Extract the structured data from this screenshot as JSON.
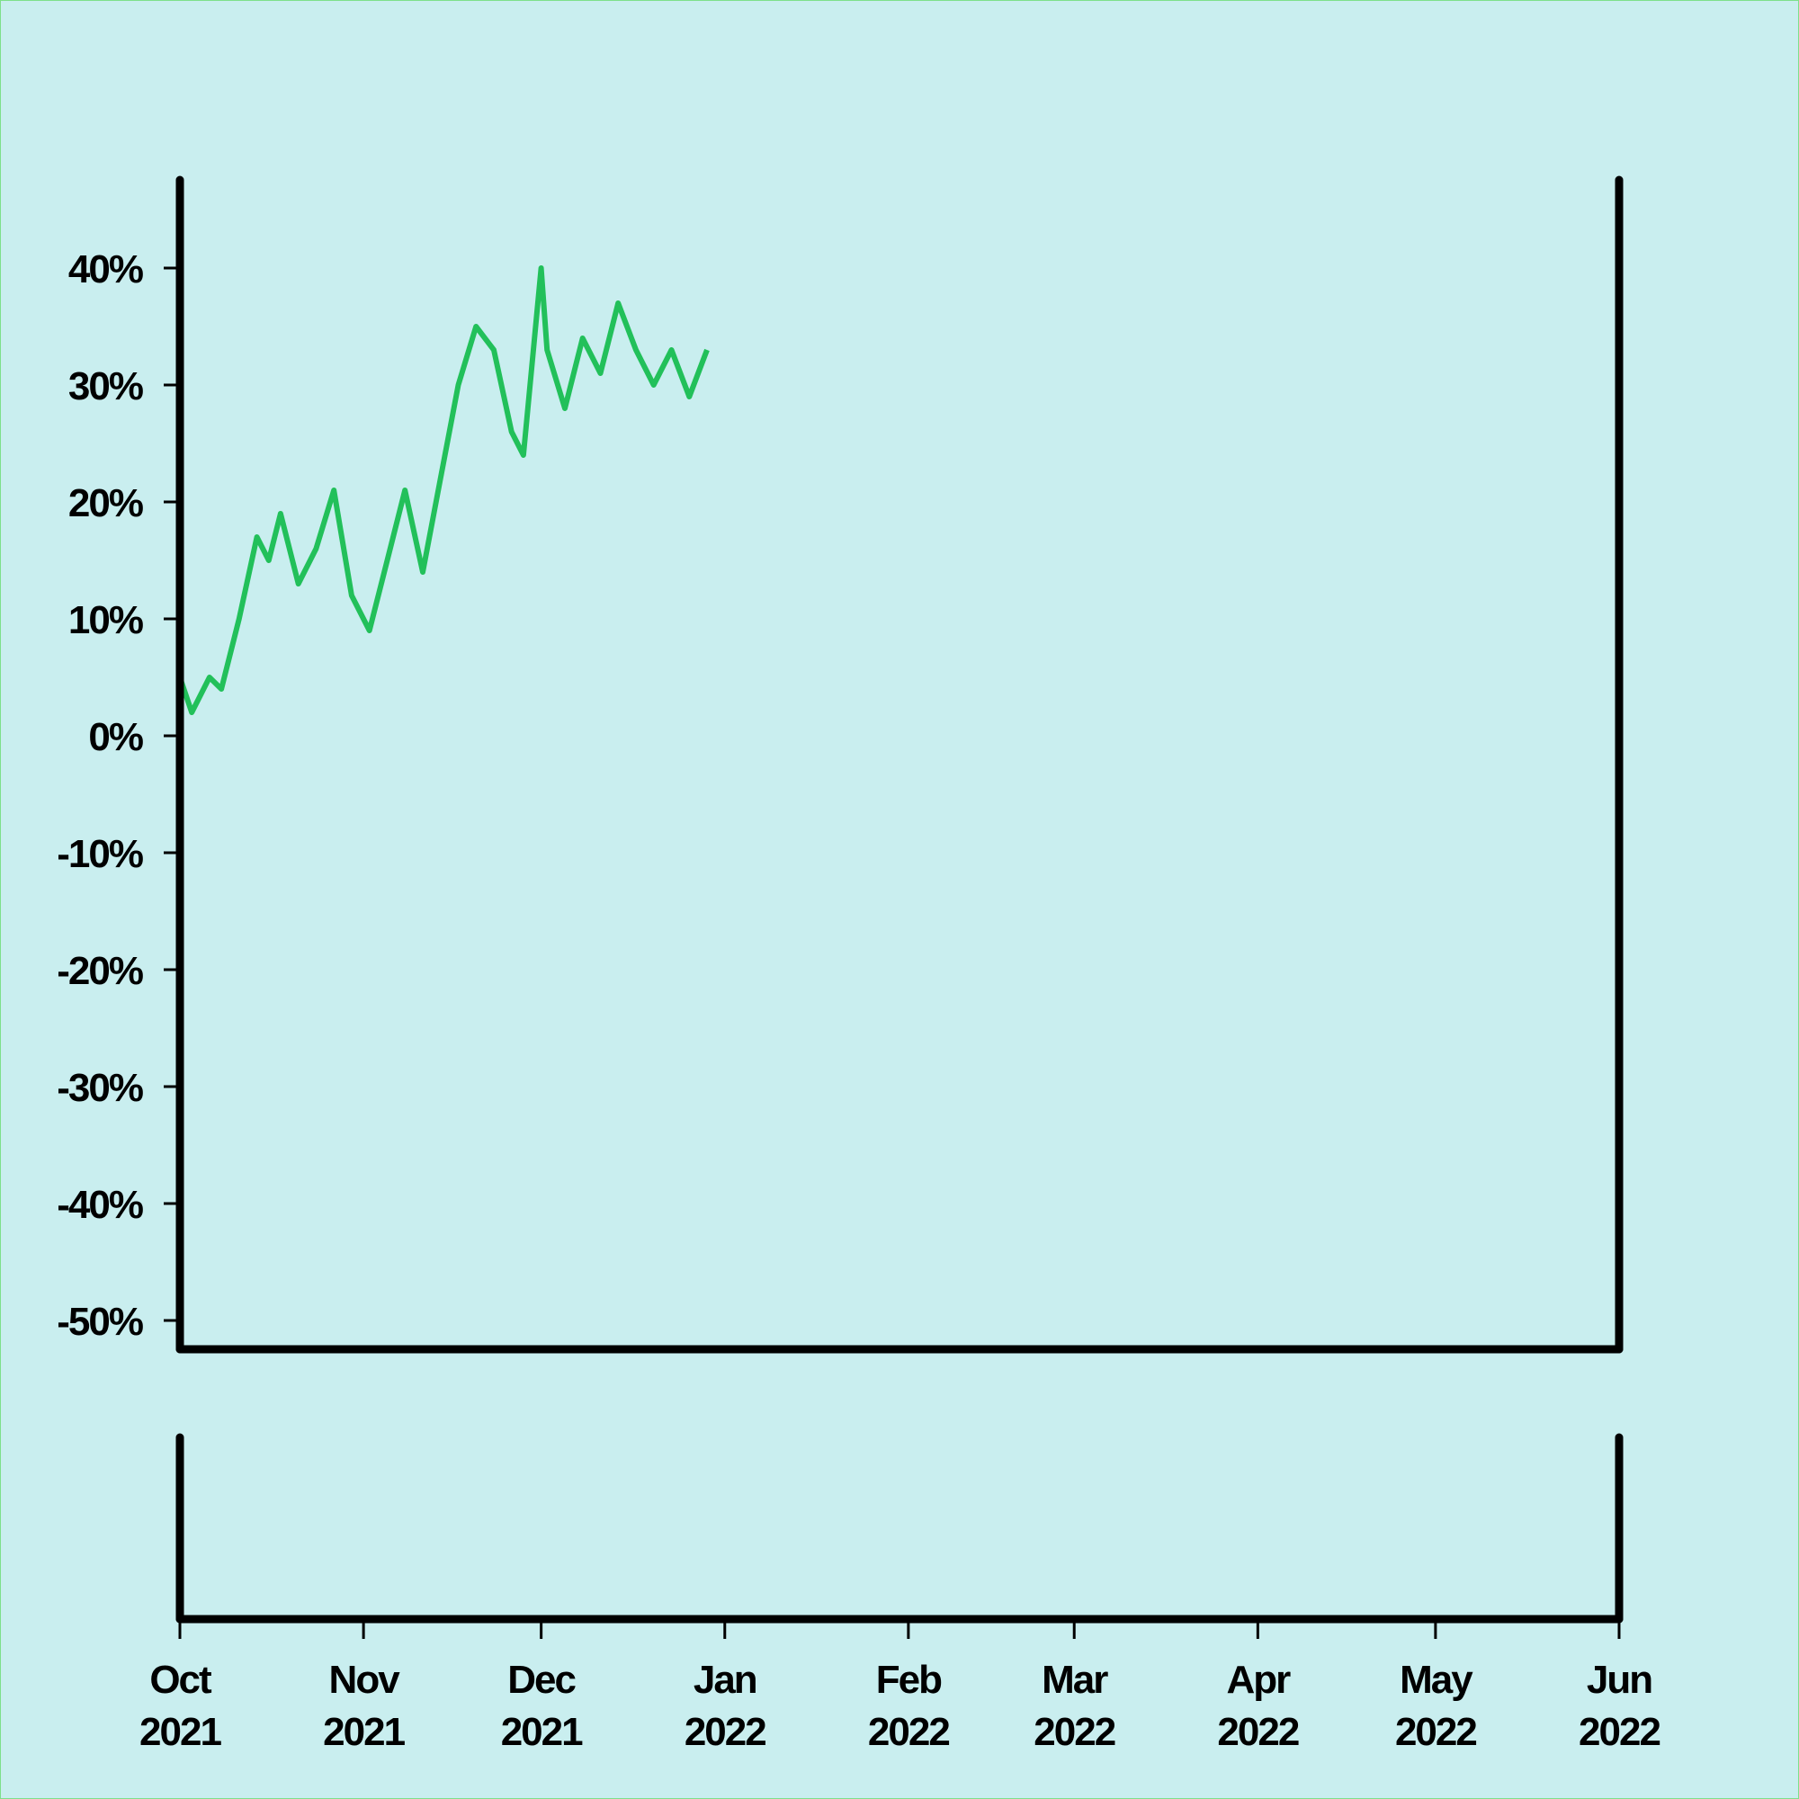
{
  "chart_data": [
    {
      "type": "line",
      "title": "",
      "xlabel": "",
      "ylabel": "",
      "grid": false,
      "ylim": [
        -50,
        50
      ],
      "yticks": [
        "40%",
        "30%",
        "20%",
        "10%",
        "0%",
        "-10%",
        "-20%",
        "-30%",
        "-40%",
        "-50%"
      ],
      "ytick_values": [
        40,
        30,
        20,
        10,
        0,
        -10,
        -20,
        -30,
        -40,
        -50
      ],
      "x_domain": [
        "2021-10-01",
        "2022-06-01"
      ],
      "xticks": [
        {
          "date": "2021-10-01",
          "month": "Oct",
          "year": "2021"
        },
        {
          "date": "2021-11-01",
          "month": "Nov",
          "year": "2021"
        },
        {
          "date": "2021-12-01",
          "month": "Dec",
          "year": "2021"
        },
        {
          "date": "2022-01-01",
          "month": "Jan",
          "year": "2022"
        },
        {
          "date": "2022-02-01",
          "month": "Feb",
          "year": "2022"
        },
        {
          "date": "2022-03-01",
          "month": "Mar",
          "year": "2022"
        },
        {
          "date": "2022-04-01",
          "month": "Apr",
          "year": "2022"
        },
        {
          "date": "2022-05-01",
          "month": "May",
          "year": "2022"
        },
        {
          "date": "2022-06-01",
          "month": "Jun",
          "year": "2022"
        }
      ],
      "series": [
        {
          "style": "solid",
          "color": "#22c05a",
          "points": [
            [
              "2021-10-01",
              5
            ],
            [
              "2021-10-03",
              2
            ],
            [
              "2021-10-06",
              5
            ],
            [
              "2021-10-08",
              4
            ],
            [
              "2021-10-11",
              10
            ],
            [
              "2021-10-14",
              17
            ],
            [
              "2021-10-16",
              15
            ],
            [
              "2021-10-18",
              19
            ],
            [
              "2021-10-21",
              13
            ],
            [
              "2021-10-24",
              16
            ],
            [
              "2021-10-27",
              21
            ],
            [
              "2021-10-30",
              12
            ],
            [
              "2021-11-02",
              9
            ],
            [
              "2021-11-05",
              15
            ],
            [
              "2021-11-08",
              21
            ],
            [
              "2021-11-11",
              14
            ],
            [
              "2021-11-14",
              22
            ],
            [
              "2021-11-17",
              30
            ],
            [
              "2021-11-20",
              35
            ],
            [
              "2021-11-23",
              33
            ],
            [
              "2021-11-26",
              26
            ],
            [
              "2021-11-28",
              24
            ],
            [
              "2021-12-02",
              33
            ],
            [
              "2021-12-05",
              28
            ],
            [
              "2021-12-08",
              34
            ],
            [
              "2021-12-11",
              31
            ],
            [
              "2021-12-14",
              37
            ],
            [
              "2021-12-17",
              33
            ],
            [
              "2021-12-20",
              30
            ],
            [
              "2021-12-23",
              33
            ],
            [
              "2021-12-26",
              29
            ],
            [
              "2021-12-29",
              33
            ],
            [
              "2021-12-01",
              40
            ]
          ]
        },
        {
          "style": "dotted-markers",
          "color": "#8ee07a",
          "points": []
        }
      ]
    },
    {
      "type": "bar",
      "title": "",
      "xlabel": "",
      "ylabel": "",
      "color": "#22c05a",
      "values": []
    }
  ]
}
